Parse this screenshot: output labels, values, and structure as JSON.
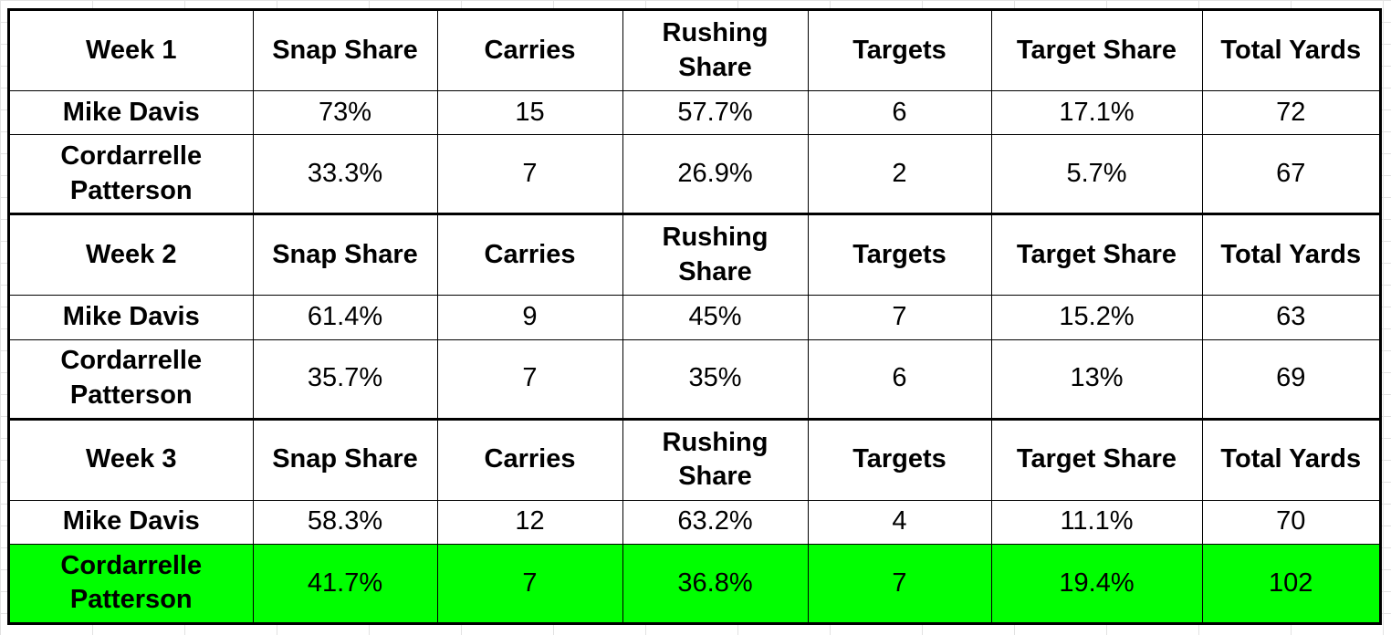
{
  "highlight_color": "#00ff00",
  "weeks": [
    {
      "label": "Week 1",
      "columns": [
        "Snap Share",
        "Carries",
        "Rushing Share",
        "Targets",
        "Target Share",
        "Total Yards"
      ],
      "rows": [
        {
          "player": "Mike Davis",
          "values": [
            "73%",
            "15",
            "57.7%",
            "6",
            "17.1%",
            "72"
          ]
        },
        {
          "player": "Cordarrelle Patterson",
          "values": [
            "33.3%",
            "7",
            "26.9%",
            "2",
            "5.7%",
            "67"
          ]
        }
      ]
    },
    {
      "label": "Week 2",
      "columns": [
        "Snap Share",
        "Carries",
        "Rushing Share",
        "Targets",
        "Target Share",
        "Total Yards"
      ],
      "rows": [
        {
          "player": "Mike Davis",
          "values": [
            "61.4%",
            "9",
            "45%",
            "7",
            "15.2%",
            "63"
          ]
        },
        {
          "player": "Cordarrelle Patterson",
          "values": [
            "35.7%",
            "7",
            "35%",
            "6",
            "13%",
            "69"
          ]
        }
      ]
    },
    {
      "label": "Week 3",
      "columns": [
        "Snap Share",
        "Carries",
        "Rushing Share",
        "Targets",
        "Target Share",
        "Total Yards"
      ],
      "rows": [
        {
          "player": "Mike Davis",
          "values": [
            "58.3%",
            "12",
            "63.2%",
            "4",
            "11.1%",
            "70"
          ]
        },
        {
          "player": "Cordarrelle Patterson",
          "values": [
            "41.7%",
            "7",
            "36.8%",
            "7",
            "19.4%",
            "102"
          ],
          "highlighted": true
        }
      ]
    }
  ]
}
